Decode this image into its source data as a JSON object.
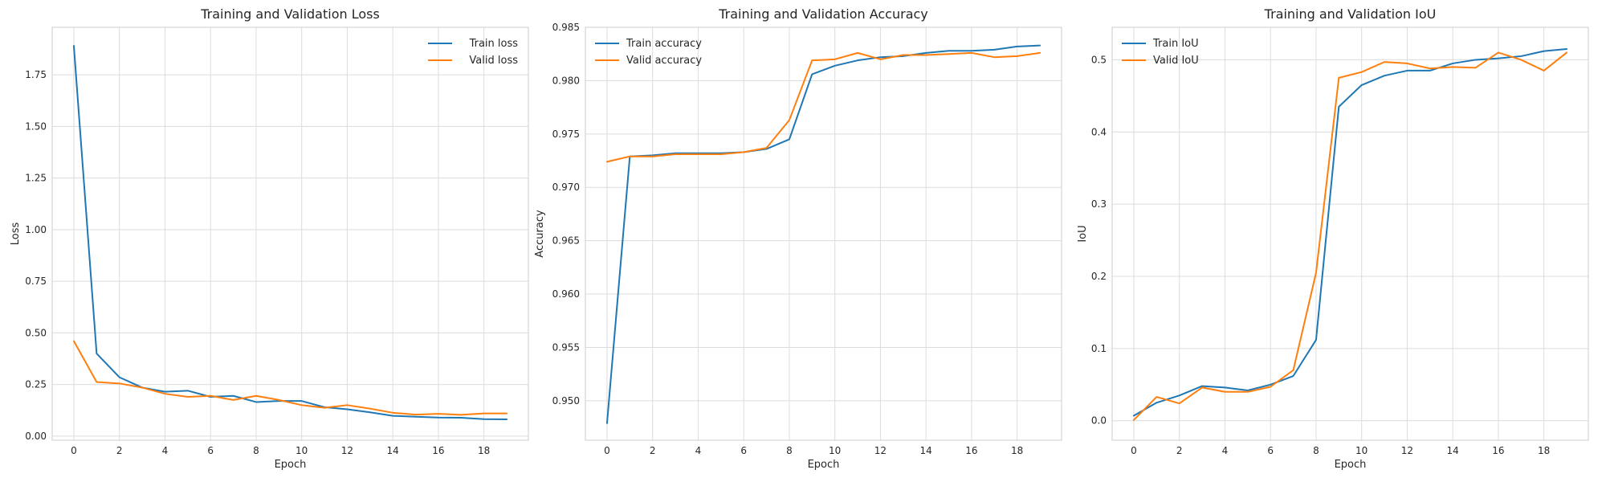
{
  "chart_data": [
    {
      "type": "line",
      "title": "Training and Validation Loss",
      "xlabel": "Epoch",
      "ylabel": "Loss",
      "xlim": [
        -0.95,
        19.95
      ],
      "ylim": [
        -0.02,
        1.98
      ],
      "xticks": [
        0,
        2,
        4,
        6,
        8,
        10,
        12,
        14,
        16,
        18
      ],
      "xtick_labels": [
        "0",
        "2",
        "4",
        "6",
        "8",
        "10",
        "12",
        "14",
        "16",
        "18"
      ],
      "yticks": [
        0.0,
        0.25,
        0.5,
        0.75,
        1.0,
        1.25,
        1.5,
        1.75
      ],
      "ytick_labels": [
        "0.00",
        "0.25",
        "0.50",
        "0.75",
        "1.00",
        "1.25",
        "1.50",
        "1.75"
      ],
      "grid": true,
      "legend": "top-right",
      "x": [
        0,
        1,
        2,
        3,
        4,
        5,
        6,
        7,
        8,
        9,
        10,
        11,
        12,
        13,
        14,
        15,
        16,
        17,
        18,
        19
      ],
      "series": [
        {
          "name": "Train loss",
          "color": "#1f77b4",
          "values": [
            1.89,
            0.4,
            0.285,
            0.235,
            0.215,
            0.22,
            0.19,
            0.195,
            0.165,
            0.17,
            0.17,
            0.14,
            0.13,
            0.115,
            0.098,
            0.094,
            0.09,
            0.089,
            0.082,
            0.081
          ]
        },
        {
          "name": "Valid loss",
          "color": "#ff7f0e",
          "values": [
            0.46,
            0.262,
            0.255,
            0.235,
            0.205,
            0.19,
            0.195,
            0.175,
            0.195,
            0.175,
            0.15,
            0.137,
            0.15,
            0.133,
            0.113,
            0.104,
            0.108,
            0.103,
            0.11,
            0.11
          ]
        }
      ]
    },
    {
      "type": "line",
      "title": "Training and Validation Accuracy",
      "xlabel": "Epoch",
      "ylabel": "Accuracy",
      "xlim": [
        -0.95,
        19.95
      ],
      "ylim": [
        0.9463,
        0.985
      ],
      "xticks": [
        0,
        2,
        4,
        6,
        8,
        10,
        12,
        14,
        16,
        18
      ],
      "xtick_labels": [
        "0",
        "2",
        "4",
        "6",
        "8",
        "10",
        "12",
        "14",
        "16",
        "18"
      ],
      "yticks": [
        0.95,
        0.955,
        0.96,
        0.965,
        0.97,
        0.975,
        0.98,
        0.985
      ],
      "ytick_labels": [
        "0.950",
        "0.955",
        "0.960",
        "0.965",
        "0.970",
        "0.975",
        "0.980",
        "0.985"
      ],
      "grid": true,
      "legend": "top-left",
      "x": [
        0,
        1,
        2,
        3,
        4,
        5,
        6,
        7,
        8,
        9,
        10,
        11,
        12,
        13,
        14,
        15,
        16,
        17,
        18,
        19
      ],
      "series": [
        {
          "name": "Train accuracy",
          "color": "#1f77b4",
          "values": [
            0.9479,
            0.9729,
            0.973,
            0.9732,
            0.9732,
            0.9732,
            0.9733,
            0.9736,
            0.9745,
            0.9806,
            0.9814,
            0.9819,
            0.9822,
            0.9823,
            0.9826,
            0.9828,
            0.9828,
            0.9829,
            0.9832,
            0.9833
          ]
        },
        {
          "name": "Valid accuracy",
          "color": "#ff7f0e",
          "values": [
            0.9724,
            0.9729,
            0.9729,
            0.9731,
            0.9731,
            0.9731,
            0.9733,
            0.9737,
            0.9763,
            0.9819,
            0.982,
            0.9826,
            0.982,
            0.9824,
            0.9824,
            0.9825,
            0.9826,
            0.9822,
            0.9823,
            0.9826
          ]
        }
      ]
    },
    {
      "type": "line",
      "title": "Training and Validation IoU",
      "xlabel": "Epoch",
      "ylabel": "IoU",
      "xlim": [
        -0.95,
        19.95
      ],
      "ylim": [
        -0.027,
        0.545
      ],
      "xticks": [
        0,
        2,
        4,
        6,
        8,
        10,
        12,
        14,
        16,
        18
      ],
      "xtick_labels": [
        "0",
        "2",
        "4",
        "6",
        "8",
        "10",
        "12",
        "14",
        "16",
        "18"
      ],
      "yticks": [
        0.0,
        0.1,
        0.2,
        0.3,
        0.4,
        0.5
      ],
      "ytick_labels": [
        "0.0",
        "0.1",
        "0.2",
        "0.3",
        "0.4",
        "0.5"
      ],
      "grid": true,
      "legend": "top-left",
      "x": [
        0,
        1,
        2,
        3,
        4,
        5,
        6,
        7,
        8,
        9,
        10,
        11,
        12,
        13,
        14,
        15,
        16,
        17,
        18,
        19
      ],
      "series": [
        {
          "name": "Train IoU",
          "color": "#1f77b4",
          "values": [
            0.007,
            0.025,
            0.035,
            0.048,
            0.046,
            0.042,
            0.05,
            0.062,
            0.112,
            0.435,
            0.465,
            0.478,
            0.485,
            0.485,
            0.495,
            0.5,
            0.502,
            0.505,
            0.512,
            0.515
          ]
        },
        {
          "name": "Valid IoU",
          "color": "#ff7f0e",
          "values": [
            0.001,
            0.033,
            0.024,
            0.046,
            0.04,
            0.04,
            0.047,
            0.07,
            0.205,
            0.475,
            0.483,
            0.497,
            0.495,
            0.488,
            0.49,
            0.489,
            0.51,
            0.5,
            0.485,
            0.51
          ]
        }
      ]
    }
  ]
}
